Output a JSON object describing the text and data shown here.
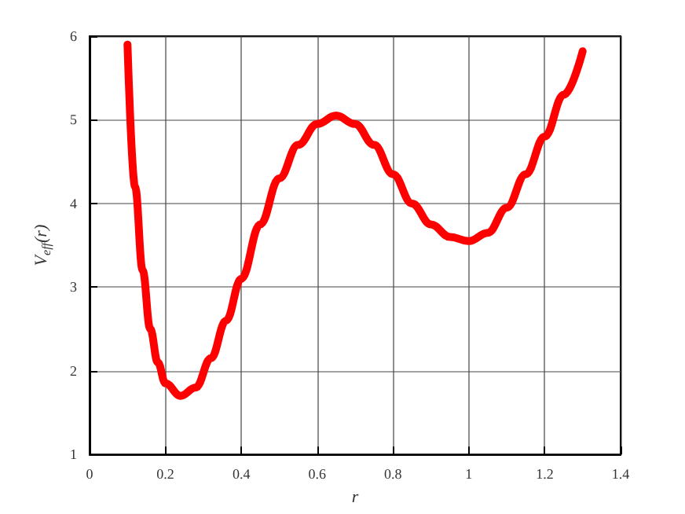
{
  "chart_data": {
    "type": "line",
    "xlabel": "r",
    "ylabel": "V$_{eff}$(r)",
    "x": [
      0.1,
      0.12,
      0.14,
      0.16,
      0.18,
      0.2,
      0.24,
      0.28,
      0.32,
      0.36,
      0.4,
      0.45,
      0.5,
      0.55,
      0.6,
      0.65,
      0.7,
      0.75,
      0.8,
      0.85,
      0.9,
      0.95,
      1.0,
      1.05,
      1.1,
      1.15,
      1.2,
      1.25,
      1.3
    ],
    "series": [
      {
        "color": "#ff0000",
        "values": [
          5.9,
          4.2,
          3.2,
          2.5,
          2.1,
          1.85,
          1.7,
          1.8,
          2.15,
          2.6,
          3.1,
          3.75,
          4.3,
          4.7,
          4.95,
          5.05,
          4.95,
          4.7,
          4.35,
          4.0,
          3.75,
          3.6,
          3.55,
          3.65,
          3.95,
          4.35,
          4.8,
          5.3,
          5.82
        ]
      }
    ],
    "xlim": [
      0,
      1.4
    ],
    "xticks": [
      0,
      0.2,
      0.4,
      0.6,
      0.8,
      1,
      1.2,
      1.4
    ],
    "ylim": [
      1,
      6
    ],
    "yticks": [
      1,
      2,
      3,
      4,
      5,
      6
    ],
    "grid": true,
    "marker": "none",
    "line_style": "solid"
  }
}
